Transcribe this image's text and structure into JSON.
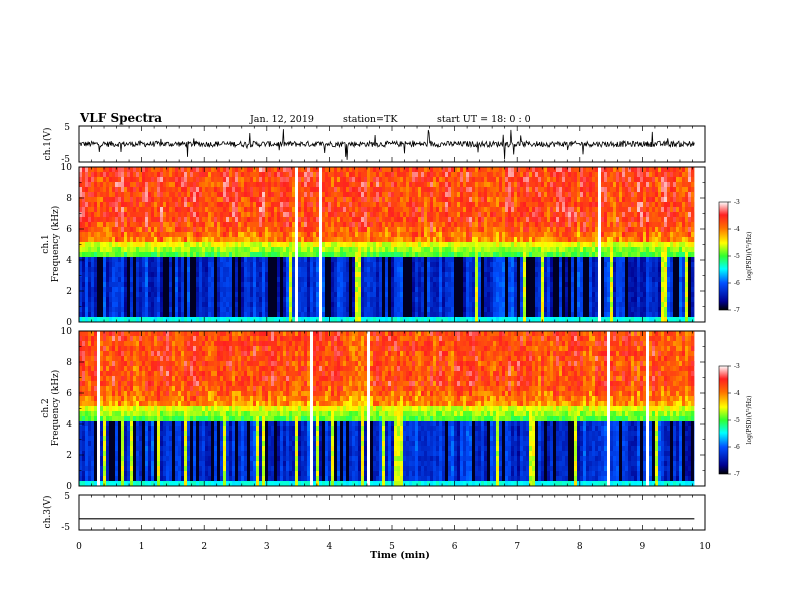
{
  "header": {
    "title": "VLF Spectra",
    "date": "Jan. 12, 2019",
    "station": "station=TK",
    "start": "start UT = 18: 0 : 0"
  },
  "chart_data": [
    {
      "type": "line",
      "ylabel": "ch.1(V)",
      "ylim": [
        -5,
        5
      ],
      "yticks": [
        "5",
        "-5"
      ],
      "xlim": [
        0,
        10
      ]
    },
    {
      "type": "heatmap",
      "ylabel": "ch.1\nFrequency (kHz)",
      "ylim": [
        0,
        10
      ],
      "yticks": [
        "0",
        "2",
        "4",
        "6",
        "8",
        "10"
      ],
      "xlim": [
        0,
        10
      ],
      "data_end_min": 9.83,
      "colorbar": {
        "label": "log(PSD)(V²/Hz)",
        "ticks": [
          "-3",
          "-4",
          "-5",
          "-6",
          "-7"
        ],
        "range": [
          -7,
          -3
        ]
      }
    },
    {
      "type": "heatmap",
      "ylabel": "ch.2\nFrequency (kHz)",
      "ylim": [
        0,
        10
      ],
      "yticks": [
        "0",
        "2",
        "4",
        "6",
        "8",
        "10"
      ],
      "xlim": [
        0,
        10
      ],
      "data_end_min": 9.83,
      "colorbar": {
        "label": "log(PSD)(V²/Hz)",
        "ticks": [
          "-3",
          "-4",
          "-5",
          "-6",
          "-7"
        ],
        "range": [
          -7,
          -3
        ]
      }
    },
    {
      "type": "line",
      "ylabel": "ch.3(V)",
      "ylim": [
        -5,
        5
      ],
      "yticks": [
        "5",
        "-5"
      ],
      "xlim": [
        0,
        10
      ],
      "level": -1.8
    }
  ],
  "xaxis": {
    "label": "Time (min)",
    "ticks": [
      "0",
      "1",
      "2",
      "3",
      "4",
      "5",
      "6",
      "7",
      "8",
      "9",
      "10"
    ]
  }
}
